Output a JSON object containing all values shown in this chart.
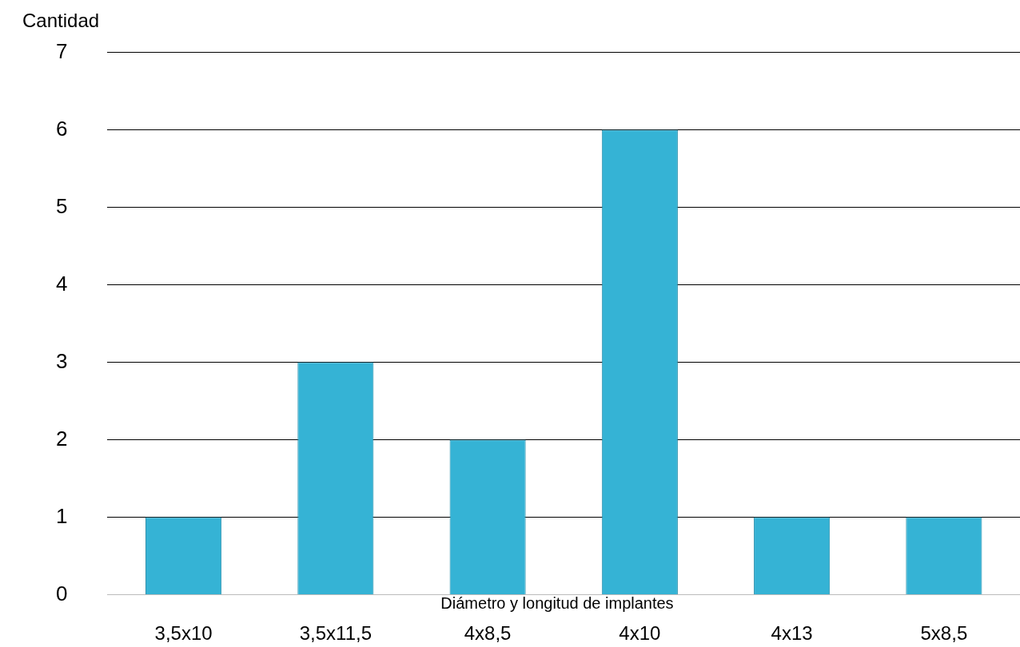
{
  "chart_data": {
    "type": "bar",
    "ylabel": "Cantidad",
    "xlabel": "Diámetro y longitud de implantes",
    "categories": [
      "3,5x10",
      "3,5x11,5",
      "4x8,5",
      "4x10",
      "4x13",
      "5x8,5"
    ],
    "values": [
      1,
      3,
      2,
      6,
      1,
      1
    ],
    "color": "#35b3d5",
    "ylim": [
      0,
      7
    ],
    "yticks": [
      0,
      1,
      2,
      3,
      4,
      5,
      6,
      7
    ],
    "grid": "y",
    "legend": false
  }
}
